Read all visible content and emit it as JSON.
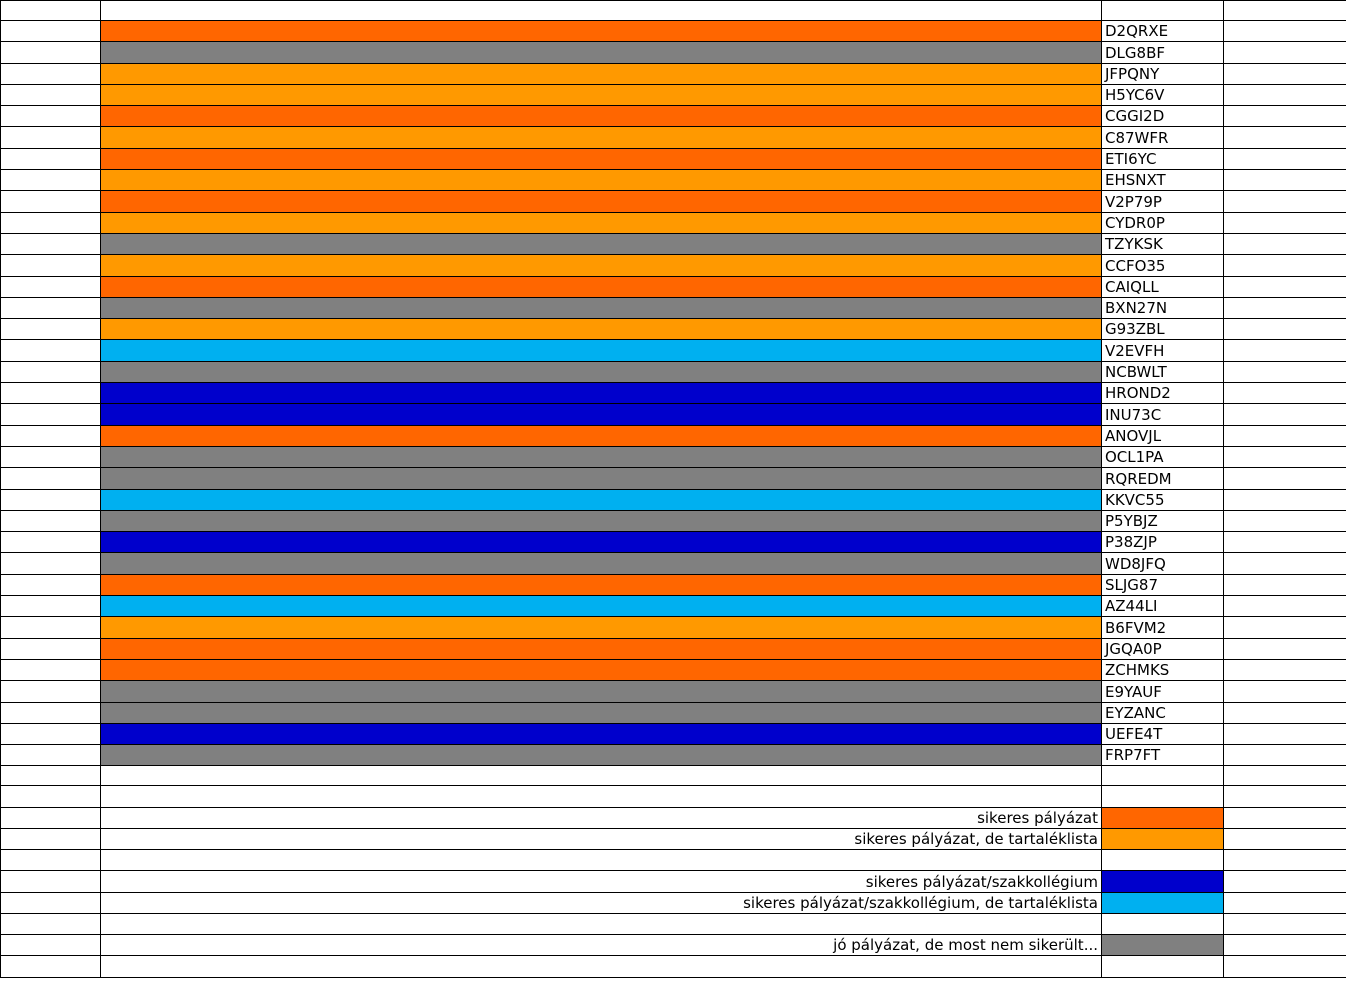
{
  "colors": {
    "orange": "#FF6600",
    "light_orange": "#FF9900",
    "gray": "#808080",
    "dark_blue": "#0000CC",
    "light_blue": "#00B0F0"
  },
  "rows": [
    {
      "code": "D2QRXE",
      "status": "orange"
    },
    {
      "code": "DLG8BF",
      "status": "gray"
    },
    {
      "code": "JFPQNY",
      "status": "light_orange"
    },
    {
      "code": "H5YC6V",
      "status": "light_orange"
    },
    {
      "code": "CGGI2D",
      "status": "orange"
    },
    {
      "code": "C87WFR",
      "status": "light_orange"
    },
    {
      "code": "ETI6YC",
      "status": "orange"
    },
    {
      "code": "EHSNXT",
      "status": "light_orange"
    },
    {
      "code": "V2P79P",
      "status": "orange"
    },
    {
      "code": "CYDR0P",
      "status": "light_orange"
    },
    {
      "code": "TZYKSK",
      "status": "gray"
    },
    {
      "code": "CCFO35",
      "status": "light_orange"
    },
    {
      "code": "CAIQLL",
      "status": "orange"
    },
    {
      "code": "BXN27N",
      "status": "gray"
    },
    {
      "code": "G93ZBL",
      "status": "light_orange"
    },
    {
      "code": "V2EVFH",
      "status": "light_blue"
    },
    {
      "code": "NCBWLT",
      "status": "gray"
    },
    {
      "code": "HROND2",
      "status": "dark_blue"
    },
    {
      "code": "INU73C",
      "status": "dark_blue"
    },
    {
      "code": "ANOVJL",
      "status": "orange"
    },
    {
      "code": "OCL1PA",
      "status": "gray"
    },
    {
      "code": "RQREDM",
      "status": "gray"
    },
    {
      "code": "KKVC55",
      "status": "light_blue"
    },
    {
      "code": "P5YBJZ",
      "status": "gray"
    },
    {
      "code": "P38ZJP",
      "status": "dark_blue"
    },
    {
      "code": "WD8JFQ",
      "status": "gray"
    },
    {
      "code": "SLJG87",
      "status": "orange"
    },
    {
      "code": "AZ44LI",
      "status": "light_blue"
    },
    {
      "code": "B6FVM2",
      "status": "light_orange"
    },
    {
      "code": "JGQA0P",
      "status": "orange"
    },
    {
      "code": "ZCHMKS",
      "status": "orange"
    },
    {
      "code": "E9YAUF",
      "status": "gray"
    },
    {
      "code": "EYZANC",
      "status": "gray"
    },
    {
      "code": "UEFE4T",
      "status": "dark_blue"
    },
    {
      "code": "FRP7FT",
      "status": "gray"
    }
  ],
  "legend": {
    "successful": "sikeres pályázat",
    "successful_reserve": "sikeres pályázat, de tartaléklista",
    "successful_college": "sikeres pályázat/szakkollégium",
    "successful_college_reserve": "sikeres pályázat/szakkollégium, de tartaléklista",
    "good_not_successful": "jó pályázat, de most nem sikerült..."
  }
}
